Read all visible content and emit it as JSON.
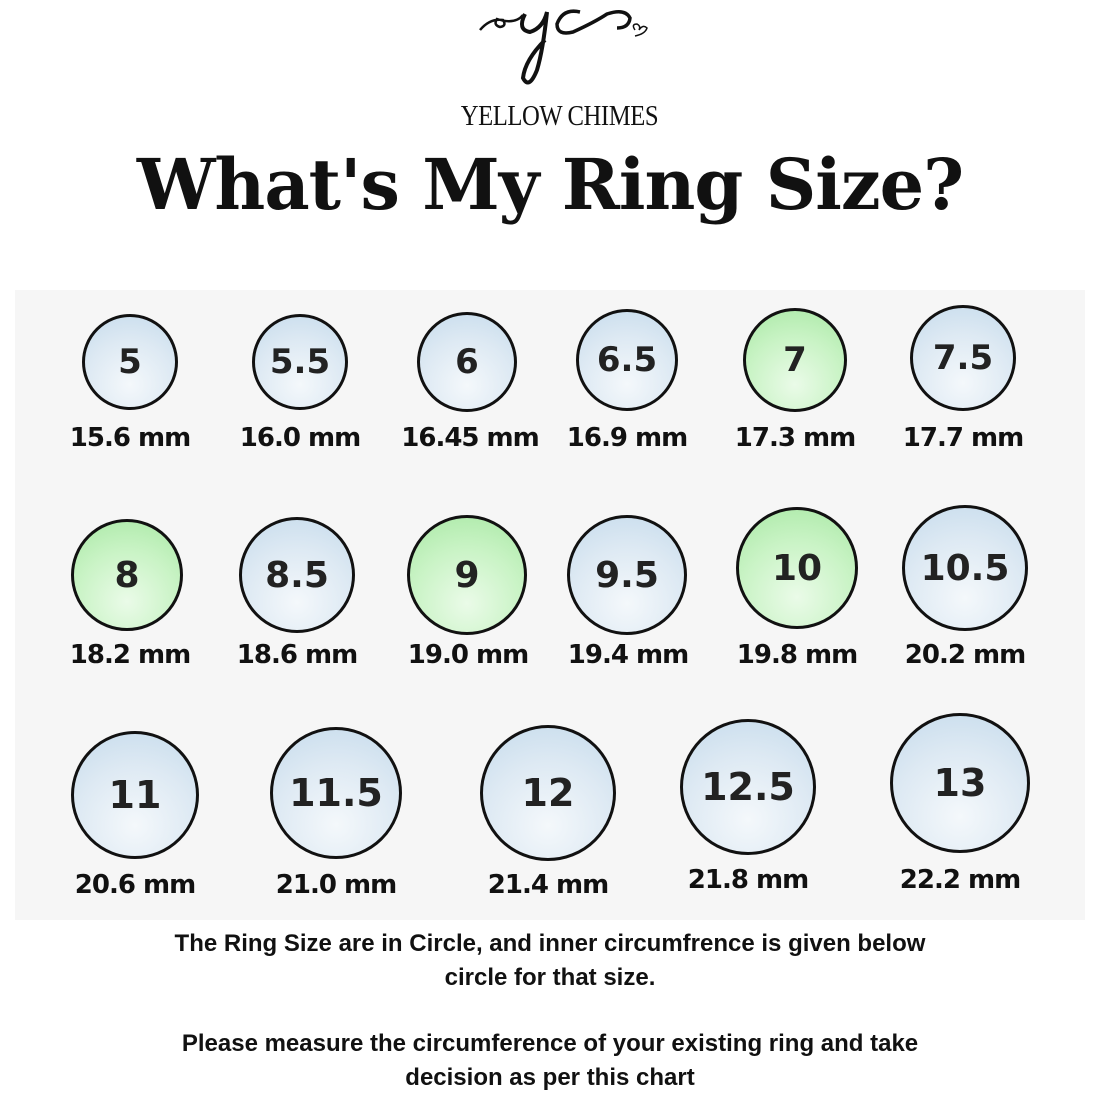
{
  "logo": {
    "monogram": "yc",
    "brand": "YELLOW CHIMES"
  },
  "title": "What's My Ring Size?",
  "colors": {
    "highlight": "#b8eeb4",
    "default": "#d3e3f0",
    "outline": "#111111"
  },
  "rings": [
    {
      "size": "5",
      "mm": "15.6 mm",
      "highlight": false
    },
    {
      "size": "5.5",
      "mm": "16.0 mm",
      "highlight": false
    },
    {
      "size": "6",
      "mm": "16.45 mm",
      "highlight": false
    },
    {
      "size": "6.5",
      "mm": "16.9 mm",
      "highlight": false
    },
    {
      "size": "7",
      "mm": "17.3 mm",
      "highlight": true
    },
    {
      "size": "7.5",
      "mm": "17.7 mm",
      "highlight": false
    },
    {
      "size": "8",
      "mm": "18.2 mm",
      "highlight": true
    },
    {
      "size": "8.5",
      "mm": "18.6 mm",
      "highlight": false
    },
    {
      "size": "9",
      "mm": "19.0 mm",
      "highlight": true
    },
    {
      "size": "9.5",
      "mm": "19.4 mm",
      "highlight": false
    },
    {
      "size": "10",
      "mm": "19.8 mm",
      "highlight": true
    },
    {
      "size": "10.5",
      "mm": "20.2 mm",
      "highlight": false
    },
    {
      "size": "11",
      "mm": "20.6 mm",
      "highlight": false
    },
    {
      "size": "11.5",
      "mm": "21.0 mm",
      "highlight": false
    },
    {
      "size": "12",
      "mm": "21.4 mm",
      "highlight": false
    },
    {
      "size": "12.5",
      "mm": "21.8 mm",
      "highlight": false
    },
    {
      "size": "13",
      "mm": "22.2 mm",
      "highlight": false
    }
  ],
  "notes": {
    "line1": "The Ring Size are in Circle, and inner circumfrence is  given below",
    "line2": "circle for that size.",
    "line3": "Please measure the circumference of your existing ring and take",
    "line4": "decision as per this chart"
  }
}
